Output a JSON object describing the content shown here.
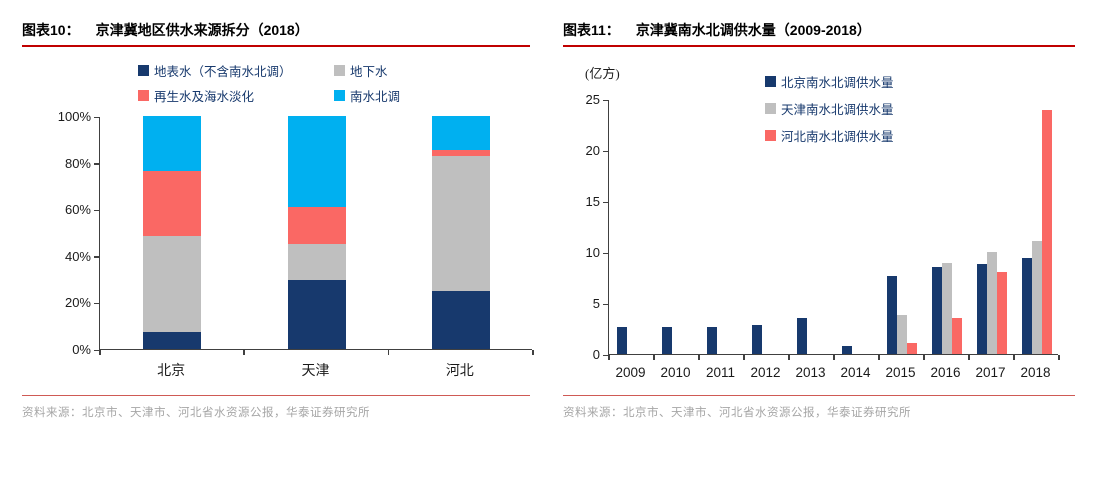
{
  "figures": [
    {
      "label": "图表10：",
      "title": "京津冀地区供水来源拆分（2018）",
      "source": "资料来源：北京市、天津市、河北省水资源公报，华泰证券研究所"
    },
    {
      "label": "图表11：",
      "title": "京津冀南水北调供水量（2009-2018）",
      "source": "资料来源：北京市、天津市、河北省水资源公报，华泰证券研究所"
    }
  ],
  "chart_data": [
    {
      "type": "bar",
      "subtype": "stacked-100pct",
      "title": "京津冀地区供水来源拆分（2018）",
      "categories": [
        "北京",
        "天津",
        "河北"
      ],
      "series": [
        {
          "name": "地表水（不含南水北调）",
          "color": "#17396d",
          "values": [
            7.5,
            29.5,
            25.0
          ]
        },
        {
          "name": "地下水",
          "color": "#bfbfbf",
          "values": [
            41.0,
            15.5,
            58.0
          ]
        },
        {
          "name": "再生水及海水淡化",
          "color": "#fa6864",
          "values": [
            28.0,
            16.0,
            2.5
          ]
        },
        {
          "name": "南水北调",
          "color": "#00b0f0",
          "values": [
            23.5,
            39.0,
            14.5
          ]
        }
      ],
      "ylim": [
        0,
        100
      ],
      "ytick_labels": [
        "0%",
        "20%",
        "40%",
        "60%",
        "80%",
        "100%"
      ],
      "legend_position": "top-center",
      "grid": false
    },
    {
      "type": "bar",
      "subtype": "grouped",
      "title": "京津冀南水北调供水量（2009-2018）",
      "ylabel": "(亿方)",
      "categories": [
        "2009",
        "2010",
        "2011",
        "2012",
        "2013",
        "2014",
        "2015",
        "2016",
        "2017",
        "2018"
      ],
      "series": [
        {
          "name": "北京南水北调供水量",
          "color": "#17396d",
          "values": [
            2.6,
            2.6,
            2.6,
            2.8,
            3.5,
            0.8,
            7.6,
            8.5,
            8.8,
            9.4
          ]
        },
        {
          "name": "天津南水北调供水量",
          "color": "#bfbfbf",
          "values": [
            0,
            0,
            0,
            0,
            0,
            0,
            3.8,
            8.9,
            10.0,
            11.1
          ]
        },
        {
          "name": "河北南水北调供水量",
          "color": "#fa6864",
          "values": [
            0,
            0,
            0,
            0,
            0,
            0,
            1.1,
            3.5,
            8.0,
            23.9
          ]
        }
      ],
      "ylim": [
        0,
        25
      ],
      "ytick_labels": [
        "0",
        "5",
        "10",
        "15",
        "20",
        "25"
      ],
      "legend_position": "top-right",
      "grid": false
    }
  ]
}
